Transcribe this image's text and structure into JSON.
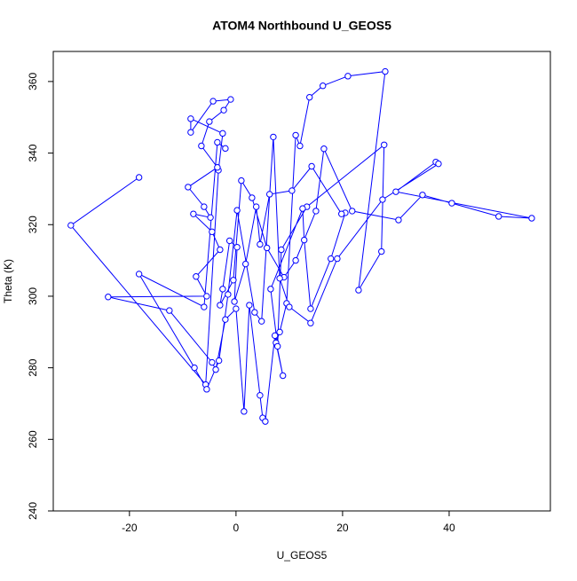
{
  "chart_data": {
    "type": "line",
    "title": "ATOM4 Northbound U_GEOS5",
    "x_label": "U_GEOS5",
    "y_label": "Theta (K)",
    "color": "#0000ff",
    "marker": "open-circle",
    "xlim": [
      -34.3,
      59
    ],
    "ylim": [
      240,
      368.4
    ],
    "xticks": [
      -20,
      0,
      20,
      40
    ],
    "yticks": [
      240,
      260,
      280,
      300,
      320,
      340,
      360
    ],
    "x": [
      -18.2,
      -31,
      -5.7,
      -3.3,
      -2.5,
      -8.5,
      -8.5,
      -4.3,
      -1,
      -2.3,
      -5,
      -6.5,
      -3.5,
      -9,
      -6,
      -4.8,
      -8,
      -4.5,
      -3,
      -7.5,
      -5.5,
      -24,
      -12.5,
      -4.5,
      -3.8,
      -2,
      0,
      1.5,
      2.5,
      4.5,
      5,
      5.5,
      7.3,
      8.8,
      7.5,
      8.2,
      9.5,
      11.2,
      12,
      13.8,
      16.3,
      21,
      28,
      23,
      27.3,
      27.8,
      13.3,
      8.5,
      7.8,
      6.5,
      12.5,
      12.8,
      14,
      17.8,
      20.5,
      19.8,
      14.2,
      10.5,
      6.3,
      4.5,
      3.8,
      1.8,
      -0.3,
      0.2,
      -1.2,
      -2.5,
      -3,
      -0.5,
      1,
      3,
      5.8,
      9,
      11.2,
      15,
      16.5,
      21.8,
      30.5,
      35,
      40.5,
      49.3,
      55.5,
      30,
      37.5,
      38,
      27.5,
      19,
      14,
      10,
      8.2,
      7,
      4.8,
      3.5,
      0.2,
      -1.5,
      -3.2,
      -5.5,
      -7.8,
      -18.2,
      -6,
      -3.5,
      -2
    ],
    "values": [
      333.2,
      319.8,
      275.3,
      335.2,
      345.5,
      349.6,
      345.8,
      354.5,
      355,
      352,
      348.8,
      342,
      336,
      330.5,
      325,
      322,
      323,
      318,
      313,
      305.5,
      300,
      299.8,
      296,
      281.5,
      279.5,
      293.5,
      296.5,
      267.8,
      297.5,
      272.3,
      266,
      265,
      289,
      277.8,
      287,
      290,
      298,
      345,
      342,
      355.6,
      358.8,
      361.5,
      362.8,
      301.7,
      312.5,
      342.3,
      325,
      313,
      286,
      302,
      324.5,
      315.7,
      296.5,
      310.5,
      323.3,
      323,
      336.3,
      329.5,
      328.5,
      314.5,
      325,
      309,
      298.5,
      313.7,
      315.5,
      302,
      297.5,
      304.5,
      332.3,
      327.5,
      313.5,
      305.3,
      310,
      323.8,
      341.2,
      323.8,
      321.3,
      328.3,
      326,
      322.3,
      321.8,
      329.2,
      337.5,
      337,
      327,
      310.5,
      292.5,
      297,
      305,
      344.5,
      293,
      295.5,
      324,
      300.5,
      282,
      274,
      280,
      306.2,
      297,
      343,
      341.3
    ]
  }
}
